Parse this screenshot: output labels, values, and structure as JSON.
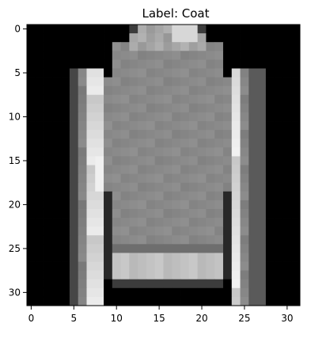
{
  "chart_data": {
    "type": "heatmap",
    "title": "Label: Coat",
    "colormap": "gray",
    "xlim": [
      -0.5,
      31.5
    ],
    "ylim": [
      31.5,
      -0.5
    ],
    "xticks": [
      0,
      5,
      10,
      15,
      20,
      25,
      30
    ],
    "yticks": [
      0,
      5,
      10,
      15,
      20,
      25,
      30
    ],
    "grid": false,
    "legend": "none",
    "rows": 32,
    "cols": 32
  }
}
